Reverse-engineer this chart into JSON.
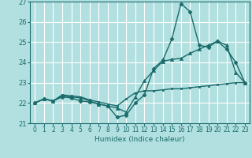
{
  "xlabel": "Humidex (Indice chaleur)",
  "background_color": "#b2e0e0",
  "grid_color": "#ffffff",
  "line_color": "#1a6b6b",
  "xlim": [
    -0.5,
    23.5
  ],
  "ylim": [
    21,
    27
  ],
  "yticks": [
    21,
    22,
    23,
    24,
    25,
    26,
    27
  ],
  "xticks": [
    0,
    1,
    2,
    3,
    4,
    5,
    6,
    7,
    8,
    9,
    10,
    11,
    12,
    13,
    14,
    15,
    16,
    17,
    18,
    19,
    20,
    21,
    22,
    23
  ],
  "series": [
    {
      "x": [
        0,
        1,
        2,
        3,
        4,
        5,
        6,
        7,
        8,
        9,
        10,
        11,
        12,
        13,
        14,
        15,
        16,
        17,
        18,
        19,
        20,
        21,
        22,
        23
      ],
      "y": [
        22.0,
        22.2,
        22.1,
        22.3,
        22.25,
        22.1,
        22.05,
        21.95,
        21.85,
        21.3,
        21.4,
        22.0,
        22.4,
        23.7,
        24.1,
        25.15,
        26.9,
        26.5,
        24.85,
        24.75,
        25.05,
        24.65,
        24.0,
        23.0
      ],
      "marker": "D",
      "markersize": 2.5,
      "linewidth": 1.0
    },
    {
      "x": [
        0,
        1,
        2,
        3,
        4,
        5,
        6,
        7,
        8,
        9,
        10,
        11,
        12,
        13,
        14,
        15,
        16,
        17,
        18,
        19,
        20,
        21,
        22,
        23
      ],
      "y": [
        22.0,
        22.2,
        22.1,
        22.35,
        22.3,
        22.25,
        22.1,
        21.95,
        21.85,
        21.75,
        21.55,
        22.3,
        23.1,
        23.6,
        24.05,
        24.15,
        24.2,
        24.45,
        24.65,
        24.85,
        25.05,
        24.85,
        23.5,
        23.0
      ],
      "marker": "^",
      "markersize": 3.0,
      "linewidth": 1.0
    },
    {
      "x": [
        0,
        1,
        2,
        3,
        4,
        5,
        6,
        7,
        8,
        9,
        10,
        11,
        12,
        13,
        14,
        15,
        16,
        17,
        18,
        19,
        20,
        21,
        22,
        23
      ],
      "y": [
        22.0,
        22.2,
        22.1,
        22.4,
        22.35,
        22.3,
        22.15,
        22.05,
        21.95,
        21.85,
        22.2,
        22.5,
        22.6,
        22.6,
        22.65,
        22.7,
        22.7,
        22.75,
        22.8,
        22.85,
        22.9,
        22.95,
        23.0,
        23.0
      ],
      "marker": "s",
      "markersize": 2.0,
      "linewidth": 1.0
    }
  ]
}
